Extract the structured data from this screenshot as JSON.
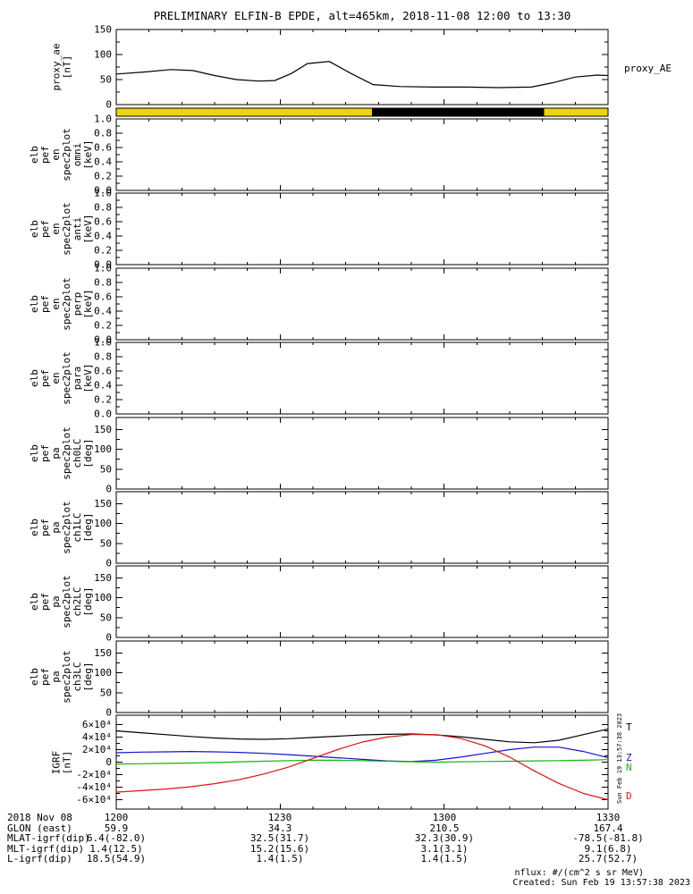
{
  "title": "PRELIMINARY ELFIN-B EPDE, alt=465km, 2018-11-08 12:00 to 13:30",
  "right_labels": {
    "proxy_ae": "proxy_AE",
    "igrf_T": "T",
    "igrf_Z": "Z",
    "igrf_N": "N",
    "igrf_D": "D"
  },
  "watermark": "Sun Feb 19 13:57:38 2023",
  "footer": {
    "date_label": "2018 Nov 08",
    "rows": [
      {
        "label": "GLON (east)",
        "values": [
          "59.9",
          "34.3",
          "210.5",
          "167.4"
        ]
      },
      {
        "label": "MLAT-igrf(dip)",
        "values": [
          "6.4(-82.0)",
          "32.5(31.7)",
          "32.3(30.9)",
          "-78.5(-81.8)"
        ]
      },
      {
        "label": "MLT-igrf(dip)",
        "values": [
          "1.4(12.5)",
          "15.2(15.6)",
          "3.1(3.1)",
          "9.1(6.8)"
        ]
      },
      {
        "label": "L-igrf(dip)",
        "values": [
          "18.5(54.9)",
          "1.4(1.5)",
          "1.4(1.5)",
          "25.7(52.7)"
        ]
      }
    ],
    "nflux_note": "nflux: #/(cm^2 s sr MeV)",
    "created": "Created: Sun Feb 19 13:57:38 2023"
  },
  "chart_data": {
    "type": "line",
    "title": "PRELIMINARY ELFIN-B EPDE, alt=465km, 2018-11-08 12:00 to 13:30",
    "x_domain": [
      0,
      90
    ],
    "x_ticks": [
      {
        "t": 0,
        "label": "1200"
      },
      {
        "t": 30,
        "label": "1230"
      },
      {
        "t": 60,
        "label": "1300"
      },
      {
        "t": 90,
        "label": "1330"
      }
    ],
    "panels": [
      {
        "id": "proxy_ae",
        "ylabel": "proxy_ae\n[nT]",
        "yrange": [
          0,
          150
        ],
        "yticks": [
          {
            "v": 150,
            "l": "150"
          },
          {
            "v": 100,
            "l": "100"
          },
          {
            "v": 50,
            "l": "50"
          },
          {
            "v": 0,
            "l": "0"
          }
        ],
        "series": [
          {
            "name": "proxy_AE",
            "color": "#000000",
            "x": [
              0,
              5,
              10,
              14,
              18,
              22,
              26,
              29,
              32,
              35,
              39,
              43,
              47,
              52,
              58,
              64,
              70,
              76,
              80,
              84,
              88,
              90
            ],
            "y": [
              61,
              65,
              70,
              68,
              58,
              50,
              47,
              48,
              62,
              82,
              86,
              62,
              40,
              36,
              35,
              35,
              34,
              35,
              44,
              55,
              59,
              58
            ]
          }
        ]
      },
      {
        "id": "position_bar",
        "bar_segments": [
          {
            "color": "#edd40c",
            "start": 0.0,
            "end": 0.52
          },
          {
            "color": "#000000",
            "start": 0.52,
            "end": 0.87
          },
          {
            "color": "#edd40c",
            "start": 0.87,
            "end": 1.0
          }
        ]
      },
      {
        "id": "en_omni",
        "ylabel": "elb\npef\nen\nspec2plot\nomni\n[keV]",
        "yrange": [
          0,
          1
        ],
        "yticks": [
          {
            "v": 1,
            "l": "1.0"
          },
          {
            "v": 0.8,
            "l": "0.8"
          },
          {
            "v": 0.6,
            "l": "0.6"
          },
          {
            "v": 0.4,
            "l": "0.4"
          },
          {
            "v": 0.2,
            "l": "0.2"
          },
          {
            "v": 0,
            "l": "0.0"
          }
        ],
        "series": []
      },
      {
        "id": "en_anti",
        "ylabel": "elb\npef\nen\nspec2plot\nanti\n[keV]",
        "yrange": [
          0,
          1
        ],
        "yticks": [
          {
            "v": 1,
            "l": "1.0"
          },
          {
            "v": 0.8,
            "l": "0.8"
          },
          {
            "v": 0.6,
            "l": "0.6"
          },
          {
            "v": 0.4,
            "l": "0.4"
          },
          {
            "v": 0.2,
            "l": "0.2"
          },
          {
            "v": 0,
            "l": "0.0"
          }
        ],
        "series": []
      },
      {
        "id": "en_perp",
        "ylabel": "elb\npef\nen\nspec2plot\nperp\n[keV]",
        "yrange": [
          0,
          1
        ],
        "yticks": [
          {
            "v": 1,
            "l": "1.0"
          },
          {
            "v": 0.8,
            "l": "0.8"
          },
          {
            "v": 0.6,
            "l": "0.6"
          },
          {
            "v": 0.4,
            "l": "0.4"
          },
          {
            "v": 0.2,
            "l": "0.2"
          },
          {
            "v": 0,
            "l": "0.0"
          }
        ],
        "series": []
      },
      {
        "id": "en_para",
        "ylabel": "elb\npef\nen\nspec2plot\npara\n[keV]",
        "yrange": [
          0,
          1
        ],
        "yticks": [
          {
            "v": 1,
            "l": "1.0"
          },
          {
            "v": 0.8,
            "l": "0.8"
          },
          {
            "v": 0.6,
            "l": "0.6"
          },
          {
            "v": 0.4,
            "l": "0.4"
          },
          {
            "v": 0.2,
            "l": "0.2"
          },
          {
            "v": 0,
            "l": "0.0"
          }
        ],
        "series": []
      },
      {
        "id": "pa_ch0lc",
        "ylabel": "elb\npef\npa\nspec2plot\nch0LC\n[deg]",
        "yrange": [
          0,
          180
        ],
        "yticks": [
          {
            "v": 150,
            "l": "150"
          },
          {
            "v": 100,
            "l": "100"
          },
          {
            "v": 50,
            "l": "50"
          },
          {
            "v": 0,
            "l": "0"
          }
        ],
        "series": []
      },
      {
        "id": "pa_ch1lc",
        "ylabel": "elb\npef\npa\nspec2plot\nch1LC\n[deg]",
        "yrange": [
          0,
          180
        ],
        "yticks": [
          {
            "v": 150,
            "l": "150"
          },
          {
            "v": 100,
            "l": "100"
          },
          {
            "v": 50,
            "l": "50"
          },
          {
            "v": 0,
            "l": "0"
          }
        ],
        "series": []
      },
      {
        "id": "pa_ch2lc",
        "ylabel": "elb\npef\npa\nspec2plot\nch2LC\n[deg]",
        "yrange": [
          0,
          180
        ],
        "yticks": [
          {
            "v": 150,
            "l": "150"
          },
          {
            "v": 100,
            "l": "100"
          },
          {
            "v": 50,
            "l": "50"
          },
          {
            "v": 0,
            "l": "0"
          }
        ],
        "series": []
      },
      {
        "id": "pa_ch3lc",
        "ylabel": "elb\npef\npa\nspec2plot\nch3LC\n[deg]",
        "yrange": [
          0,
          180
        ],
        "yticks": [
          {
            "v": 150,
            "l": "150"
          },
          {
            "v": 100,
            "l": "100"
          },
          {
            "v": 50,
            "l": "50"
          },
          {
            "v": 0,
            "l": "0"
          }
        ],
        "series": []
      },
      {
        "id": "igrf",
        "ylabel": "IGRF\n[nT]",
        "yrange": [
          -75000,
          75000
        ],
        "yticks": [
          {
            "v": 60000,
            "l": "6×10⁴"
          },
          {
            "v": 40000,
            "l": "4×10⁴"
          },
          {
            "v": 20000,
            "l": "2×10⁴"
          },
          {
            "v": 0,
            "l": "0"
          },
          {
            "v": -20000,
            "l": "-2×10⁴"
          },
          {
            "v": -40000,
            "l": "-4×10⁴"
          },
          {
            "v": -60000,
            "l": "-6×10⁴"
          }
        ],
        "series": [
          {
            "name": "T",
            "color": "#000000",
            "x": [
              0,
              4.5,
              9,
              13.5,
              18,
              22.5,
              27,
              31.5,
              36,
              40.5,
              45,
              49.5,
              54,
              58.5,
              63,
              67.5,
              72,
              76.5,
              81,
              85.5,
              90
            ],
            "y": [
              50000,
              47000,
              44000,
              41000,
              38500,
              37000,
              36500,
              37500,
              39500,
              41500,
              43500,
              44500,
              45000,
              43500,
              40500,
              36500,
              32500,
              31000,
              35000,
              44000,
              53000
            ]
          },
          {
            "name": "Z",
            "color": "#1414c8",
            "x": [
              0,
              4.5,
              9,
              13.5,
              18,
              22.5,
              27,
              31.5,
              36,
              40.5,
              45,
              49.5,
              54,
              58.5,
              63,
              67.5,
              72,
              76.5,
              81,
              85.5,
              90
            ],
            "y": [
              15000,
              16000,
              16500,
              17000,
              16500,
              15500,
              14000,
              12000,
              9500,
              7000,
              4500,
              2000,
              1000,
              3000,
              8000,
              14000,
              20000,
              24000,
              24000,
              17000,
              7000
            ]
          },
          {
            "name": "N",
            "color": "#14b414",
            "x": [
              0,
              4.5,
              9,
              13.5,
              18,
              22.5,
              27,
              31.5,
              36,
              40.5,
              45,
              49.5,
              54,
              58.5,
              63,
              67.5,
              72,
              76.5,
              81,
              85.5,
              90
            ],
            "y": [
              -3000,
              -2500,
              -2000,
              -1500,
              -500,
              500,
              1500,
              2500,
              3000,
              3000,
              2500,
              1500,
              500,
              0,
              500,
              1000,
              1500,
              2000,
              2500,
              3000,
              4000
            ]
          },
          {
            "name": "D",
            "color": "#dc1414",
            "x": [
              0,
              4.5,
              9,
              13.5,
              18,
              22.5,
              27,
              31.5,
              36,
              40.5,
              45,
              49.5,
              54,
              58.5,
              63,
              67.5,
              72,
              76.5,
              81,
              85.5,
              90
            ],
            "y": [
              -48000,
              -45500,
              -43000,
              -39500,
              -34500,
              -28000,
              -19000,
              -8000,
              6000,
              20000,
              32000,
              40000,
              44000,
              44000,
              38000,
              26000,
              8000,
              -14000,
              -34000,
              -50000,
              -60000
            ]
          }
        ]
      }
    ]
  }
}
